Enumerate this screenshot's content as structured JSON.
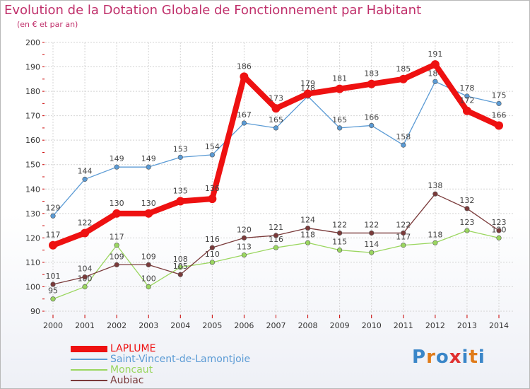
{
  "title": "Evolution de la Dotation Globale de Fonctionnement par Habitant",
  "subtitle": "(en € et par an)",
  "logo": {
    "text": "Proxiti",
    "letters": [
      "P",
      "r",
      "o",
      "x",
      "i",
      "t",
      "i"
    ],
    "colors": [
      "#3a86c8",
      "#e07b1a",
      "#3a86c8",
      "#e03030",
      "#3a86c8",
      "#e07b1a",
      "#3a86c8"
    ]
  },
  "chart_data": {
    "type": "line",
    "x": [
      "2000",
      "2001",
      "2002",
      "2003",
      "2004",
      "2005",
      "2006",
      "2007",
      "2008",
      "2009",
      "2010",
      "2011",
      "2012",
      "2013",
      "2014"
    ],
    "ylim": [
      90,
      200
    ],
    "yticks": [
      90,
      100,
      110,
      120,
      130,
      140,
      150,
      160,
      170,
      180,
      190,
      200
    ],
    "grid": true,
    "legend_position": "bottom-left",
    "series": [
      {
        "name": "LAPLUME",
        "color": "#ee1111",
        "emphasis": true,
        "values": [
          117,
          122,
          130,
          130,
          135,
          136,
          186,
          173,
          179,
          181,
          183,
          185,
          191,
          172,
          166
        ]
      },
      {
        "name": "Saint-Vincent-de-Lamontjoie",
        "color": "#5b9bd5",
        "emphasis": false,
        "values": [
          129,
          144,
          149,
          149,
          153,
          154,
          167,
          165,
          178,
          165,
          166,
          158,
          184,
          178,
          175
        ]
      },
      {
        "name": "Moncaut",
        "color": "#9ad65f",
        "emphasis": false,
        "values": [
          95,
          100,
          117,
          100,
          108,
          110,
          113,
          116,
          118,
          115,
          114,
          117,
          118,
          123,
          120
        ]
      },
      {
        "name": "Aubiac",
        "color": "#7a3a3a",
        "emphasis": false,
        "values": [
          101,
          104,
          109,
          109,
          105,
          116,
          120,
          121,
          124,
          122,
          122,
          122,
          138,
          132,
          123
        ]
      }
    ]
  }
}
